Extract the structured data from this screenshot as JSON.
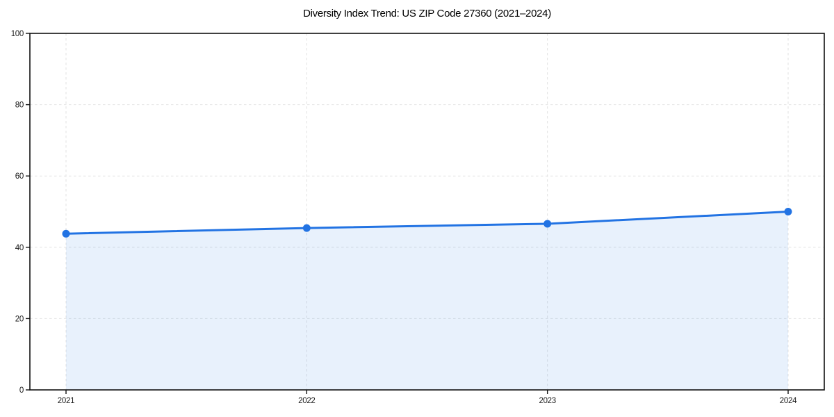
{
  "chart_data": {
    "type": "area",
    "title": "Diversity Index Trend: US ZIP Code 27360 (2021–2024)",
    "x": [
      "2021",
      "2022",
      "2023",
      "2024"
    ],
    "series": [
      {
        "name": "Diversity Index",
        "values": [
          43.8,
          45.4,
          46.6,
          50.0
        ]
      }
    ],
    "xlabel": "",
    "ylabel": "",
    "ylim": [
      0,
      100
    ],
    "yticks": [
      0,
      20,
      40,
      60,
      80,
      100
    ],
    "grid": "dashed-both-axes",
    "legend": "none",
    "markers": "circle",
    "colors": {
      "line": "#2273e3",
      "marker": "#2273e3",
      "fill": "rgba(34, 115, 227, 0.10)",
      "grid": "#e2e2e2",
      "spine": "#111111",
      "tick_label": "#1a1a1a",
      "title": "#000000",
      "background": "#ffffff"
    }
  }
}
